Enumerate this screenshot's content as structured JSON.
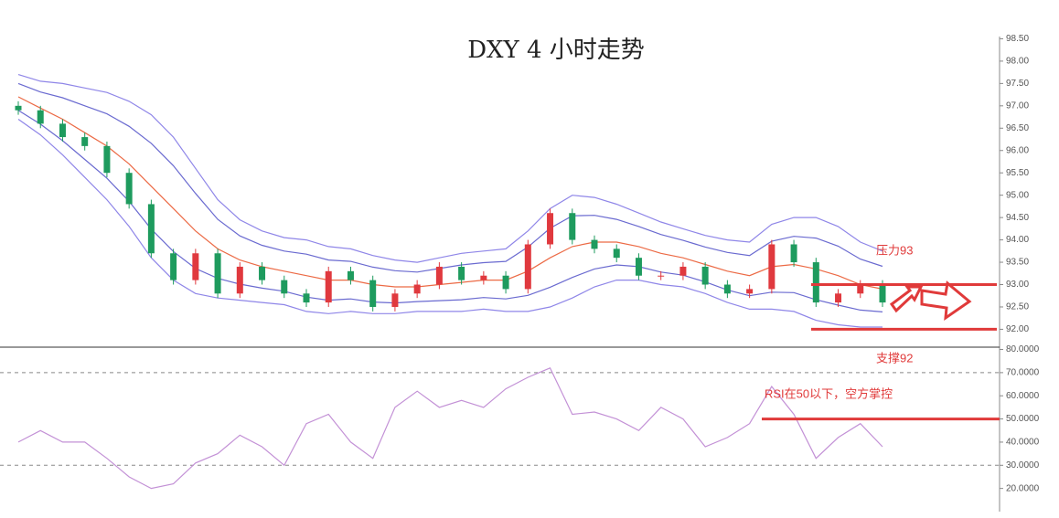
{
  "chart_data": [
    {
      "type": "candlestick",
      "title": "DXY 4 小时走势",
      "open": [
        97.0,
        96.9,
        96.6,
        96.3,
        96.1,
        95.5,
        94.8,
        93.7,
        93.1,
        93.7,
        92.8,
        93.4,
        93.1,
        92.8,
        92.6,
        93.3,
        93.1,
        92.5,
        92.8,
        93.0,
        93.4,
        93.1,
        93.2,
        92.9,
        93.9,
        94.6,
        94.0,
        93.8,
        93.6,
        93.2,
        93.2,
        93.4,
        93.0,
        92.8,
        92.9,
        93.9,
        93.5,
        92.6,
        92.8,
        93.0
      ],
      "high": [
        97.1,
        97.0,
        96.7,
        96.4,
        96.2,
        95.6,
        94.9,
        93.8,
        93.8,
        93.8,
        93.5,
        93.5,
        93.2,
        92.9,
        93.4,
        93.4,
        93.2,
        92.9,
        93.1,
        93.5,
        93.5,
        93.3,
        93.3,
        94.0,
        94.7,
        94.7,
        94.1,
        93.9,
        93.7,
        93.3,
        93.5,
        93.5,
        93.1,
        93.0,
        94.0,
        94.0,
        93.6,
        92.9,
        93.1,
        93.1
      ],
      "low": [
        96.8,
        96.5,
        96.2,
        96.0,
        95.4,
        94.7,
        93.6,
        93.0,
        93.0,
        92.7,
        92.7,
        93.0,
        92.7,
        92.5,
        92.5,
        93.0,
        92.4,
        92.4,
        92.7,
        92.9,
        93.0,
        93.0,
        92.8,
        92.8,
        93.8,
        93.9,
        93.7,
        93.5,
        93.1,
        93.1,
        93.1,
        92.9,
        92.7,
        92.7,
        92.8,
        93.4,
        92.5,
        92.5,
        92.7,
        92.5
      ],
      "close": [
        96.9,
        96.6,
        96.3,
        96.1,
        95.5,
        94.8,
        93.7,
        93.1,
        93.7,
        92.8,
        93.4,
        93.1,
        92.8,
        92.6,
        93.3,
        93.1,
        92.5,
        92.8,
        93.0,
        93.4,
        93.1,
        93.2,
        92.9,
        93.9,
        94.6,
        94.0,
        93.8,
        93.6,
        93.2,
        93.2,
        93.4,
        93.0,
        92.8,
        92.9,
        93.9,
        93.5,
        92.6,
        92.8,
        93.0,
        92.6
      ],
      "up_color": "#e0393e",
      "down_color": "#1e9b5e",
      "series": [
        {
          "color": "#8f86e8",
          "values": [
            97.7,
            97.55,
            97.5,
            97.4,
            97.3,
            97.1,
            96.8,
            96.3,
            95.6,
            94.9,
            94.45,
            94.2,
            94.05,
            94.0,
            93.85,
            93.8,
            93.65,
            93.55,
            93.5,
            93.6,
            93.7,
            93.75,
            93.8,
            94.2,
            94.7,
            95.0,
            94.95,
            94.8,
            94.6,
            94.4,
            94.25,
            94.1,
            94.0,
            93.95,
            94.35,
            94.5,
            94.5,
            94.3,
            93.95,
            93.75
          ]
        },
        {
          "color": "#6a6ad0",
          "values": [
            97.5,
            97.31,
            97.18,
            97.0,
            96.82,
            96.54,
            96.16,
            95.66,
            95.04,
            94.46,
            94.09,
            93.88,
            93.75,
            93.68,
            93.55,
            93.52,
            93.39,
            93.31,
            93.28,
            93.36,
            93.44,
            93.49,
            93.52,
            93.84,
            94.26,
            94.54,
            94.55,
            94.46,
            94.3,
            94.12,
            93.99,
            93.84,
            93.72,
            93.65,
            93.97,
            94.08,
            94.04,
            93.86,
            93.57,
            93.41
          ]
        },
        {
          "color": "#ec6a45",
          "values": [
            97.2,
            96.95,
            96.7,
            96.4,
            96.1,
            95.7,
            95.2,
            94.7,
            94.2,
            93.8,
            93.55,
            93.4,
            93.3,
            93.2,
            93.1,
            93.1,
            93.0,
            92.95,
            92.95,
            93.0,
            93.05,
            93.1,
            93.1,
            93.3,
            93.6,
            93.85,
            93.95,
            93.95,
            93.85,
            93.7,
            93.6,
            93.45,
            93.3,
            93.2,
            93.4,
            93.45,
            93.35,
            93.2,
            93.0,
            92.9
          ]
        },
        {
          "color": "#6a6ad0",
          "values": [
            96.9,
            96.59,
            96.22,
            95.8,
            95.38,
            94.86,
            94.24,
            93.74,
            93.36,
            93.14,
            93.01,
            92.92,
            92.85,
            92.72,
            92.65,
            92.68,
            92.61,
            92.59,
            92.62,
            92.64,
            92.66,
            92.71,
            92.68,
            92.76,
            92.94,
            93.16,
            93.35,
            93.44,
            93.4,
            93.28,
            93.21,
            93.06,
            92.88,
            92.75,
            92.83,
            92.82,
            92.66,
            92.54,
            92.43,
            92.39
          ]
        },
        {
          "color": "#8f86e8",
          "values": [
            96.7,
            96.35,
            95.9,
            95.4,
            94.9,
            94.3,
            93.6,
            93.1,
            92.8,
            92.7,
            92.65,
            92.6,
            92.55,
            92.4,
            92.35,
            92.4,
            92.35,
            92.35,
            92.4,
            92.4,
            92.4,
            92.45,
            92.4,
            92.4,
            92.5,
            92.7,
            92.95,
            93.1,
            93.1,
            93.0,
            92.95,
            92.8,
            92.6,
            92.45,
            92.45,
            92.4,
            92.2,
            92.1,
            92.05,
            92.05
          ]
        }
      ],
      "ylim": [
        91.6,
        98.55
      ],
      "yticks": [
        {
          "value": 92,
          "label": "92.00"
        },
        {
          "value": 92.5,
          "label": "92.50"
        },
        {
          "value": 93,
          "label": "93.00"
        },
        {
          "value": 93.5,
          "label": "93.50"
        },
        {
          "value": 94,
          "label": "94.00"
        },
        {
          "value": 94.5,
          "label": "94.50"
        },
        {
          "value": 95,
          "label": "95.00"
        },
        {
          "value": 95.5,
          "label": "95.50"
        },
        {
          "value": 96,
          "label": "96.00"
        },
        {
          "value": 96.5,
          "label": "96.50"
        },
        {
          "value": 97,
          "label": "97.00"
        },
        {
          "value": 97.5,
          "label": "97.50"
        },
        {
          "value": 98,
          "label": "98.00"
        },
        {
          "value": 98.5,
          "label": "98.50"
        }
      ],
      "resistance": 93,
      "resistance_label": "压力93",
      "support": 92,
      "support_label": "支撑92",
      "annotation_color": "#e03a3a"
    },
    {
      "type": "line",
      "series": [
        {
          "color": "#c391d6",
          "values": [
            40,
            45,
            40,
            40,
            33,
            25,
            20,
            22,
            31,
            35,
            43,
            38,
            30,
            48,
            52,
            40,
            33,
            55,
            62,
            55,
            58,
            55,
            63,
            68,
            72,
            52,
            53,
            50,
            45,
            55,
            50,
            38,
            42,
            48,
            64,
            52,
            33,
            42,
            48,
            38
          ]
        }
      ],
      "ylim": [
        10,
        81
      ],
      "yticks": [
        {
          "value": 20,
          "label": "20.0000"
        },
        {
          "value": 30,
          "label": "30.0000"
        },
        {
          "value": 40,
          "label": "40.0000"
        },
        {
          "value": 50,
          "label": "50.0000"
        },
        {
          "value": 60,
          "label": "60.0000"
        },
        {
          "value": 70,
          "label": "70.0000"
        },
        {
          "value": 80,
          "label": "80.0000"
        }
      ],
      "levels": [
        70,
        30
      ],
      "threshold": 50,
      "threshold_label": "RSI在50以下，空方掌控",
      "annotation_color": "#e03a3a"
    }
  ]
}
